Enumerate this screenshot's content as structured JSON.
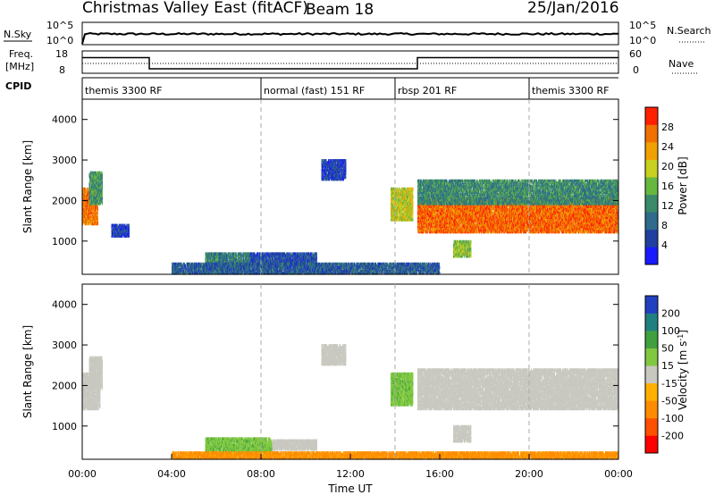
{
  "header": {
    "title": "Christmas Valley East (fitACF)",
    "beam": "Beam 18",
    "date": "25/Jan/2016"
  },
  "noise_panel": {
    "left_label": "N.Sky",
    "right_label": "N.Search",
    "tick_top": "10^5",
    "tick_bottom": "10^0"
  },
  "freq_panel": {
    "left_label_top": "Freq.",
    "left_label_bottom": "[MHz]",
    "right_label": "Nave",
    "left_ticks": [
      "18",
      "8"
    ],
    "right_ticks": [
      "60",
      "0"
    ],
    "freq_steps": [
      {
        "from_hour": 0.0,
        "to_hour": 3.0,
        "value": 15
      },
      {
        "from_hour": 3.0,
        "to_hour": 15.0,
        "value": 10
      },
      {
        "from_hour": 15.0,
        "to_hour": 24.0,
        "value": 15
      }
    ]
  },
  "cpid": {
    "label": "CPID",
    "segments": [
      {
        "name": "themis 3300 RF",
        "start_hour": 0.0
      },
      {
        "name": "normal (fast) 151 RF",
        "start_hour": 8.0
      },
      {
        "name": "rbsp 201 RF",
        "start_hour": 14.0
      },
      {
        "name": "themis 3300 RF",
        "start_hour": 20.0
      }
    ]
  },
  "colors": {
    "power": [
      "#1a1aff",
      "#2040a0",
      "#2e6b8c",
      "#3a8a6a",
      "#66b840",
      "#c8d020",
      "#f0a000",
      "#f07000",
      "#ff2000"
    ],
    "velocity": [
      "#ff0000",
      "#ff5000",
      "#ff8c00",
      "#ffb000",
      "#c8c8c0",
      "#80c840",
      "#40a040",
      "#208080",
      "#2040c0"
    ]
  },
  "chart_data": [
    {
      "type": "heatmap",
      "title": "",
      "xlabel": "",
      "ylabel": "Slant Range [km]",
      "xlim": [
        0,
        24
      ],
      "ylim": [
        180,
        4500
      ],
      "yticks": [
        "1000",
        "2000",
        "3000",
        "4000"
      ],
      "colorbar": {
        "label": "Power [dB]",
        "ticks": [
          "4",
          "8",
          "12",
          "16",
          "20",
          "24",
          "28"
        ]
      },
      "vertical_lines_hour": [
        8,
        14,
        20
      ],
      "regions": [
        {
          "t0": 0.0,
          "t1": 0.7,
          "r0": 1400,
          "r1": 2300,
          "power_db": 26
        },
        {
          "t0": 0.3,
          "t1": 0.9,
          "r0": 1900,
          "r1": 2700,
          "power_db": 14
        },
        {
          "t0": 1.3,
          "t1": 2.1,
          "r0": 1100,
          "r1": 1400,
          "power_db": 7
        },
        {
          "t0": 5.5,
          "t1": 7.5,
          "r0": 300,
          "r1": 700,
          "power_db": 12
        },
        {
          "t0": 7.5,
          "t1": 10.5,
          "r0": 400,
          "r1": 700,
          "power_db": 8
        },
        {
          "t0": 10.7,
          "t1": 11.8,
          "r0": 2500,
          "r1": 3000,
          "power_db": 7
        },
        {
          "t0": 13.8,
          "t1": 14.8,
          "r0": 1500,
          "r1": 2300,
          "power_db": 20
        },
        {
          "t0": 15.0,
          "t1": 24.0,
          "r0": 1200,
          "r1": 2050,
          "power_db": 27
        },
        {
          "t0": 15.0,
          "t1": 24.0,
          "r0": 1900,
          "r1": 2500,
          "power_db": 13
        },
        {
          "t0": 16.6,
          "t1": 17.4,
          "r0": 600,
          "r1": 1000,
          "power_db": 18
        },
        {
          "t0": 4.0,
          "t1": 16.0,
          "r0": 180,
          "r1": 450,
          "power_db": 9
        }
      ]
    },
    {
      "type": "heatmap",
      "title": "",
      "xlabel": "Time UT",
      "ylabel": "Slant Range [km]",
      "xlim": [
        0,
        24
      ],
      "ylim": [
        180,
        4500
      ],
      "xticks": [
        "00:00",
        "04:00",
        "08:00",
        "12:00",
        "16:00",
        "20:00",
        "00:00"
      ],
      "yticks": [
        "1000",
        "2000",
        "3000",
        "4000"
      ],
      "colorbar": {
        "label": "Velocity [m s-1]",
        "ticks": [
          "-200",
          "-100",
          "-50",
          "-15",
          "15",
          "50",
          "100",
          "200"
        ]
      },
      "vertical_lines_hour": [
        8,
        14,
        20
      ],
      "regions": [
        {
          "t0": 0.0,
          "t1": 0.8,
          "r0": 1400,
          "r1": 2300,
          "velocity": 0
        },
        {
          "t0": 0.3,
          "t1": 0.9,
          "r0": 1900,
          "r1": 2700,
          "velocity": 0
        },
        {
          "t0": 5.5,
          "t1": 8.5,
          "r0": 300,
          "r1": 700,
          "velocity": 40
        },
        {
          "t0": 8.5,
          "t1": 10.5,
          "r0": 400,
          "r1": 650,
          "velocity": 0
        },
        {
          "t0": 10.7,
          "t1": 11.8,
          "r0": 2500,
          "r1": 3000,
          "velocity": 0
        },
        {
          "t0": 13.8,
          "t1": 14.8,
          "r0": 1500,
          "r1": 2300,
          "velocity": 40
        },
        {
          "t0": 15.0,
          "t1": 24.0,
          "r0": 1400,
          "r1": 2400,
          "velocity": 0
        },
        {
          "t0": 16.6,
          "t1": 17.4,
          "r0": 600,
          "r1": 1000,
          "velocity": 0
        },
        {
          "t0": 4.0,
          "t1": 24.0,
          "r0": 180,
          "r1": 350,
          "velocity": -60
        }
      ]
    }
  ]
}
